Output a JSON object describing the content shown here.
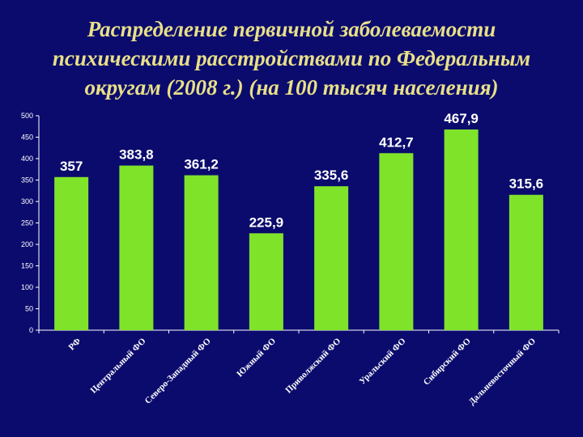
{
  "header": {
    "title_lines": [
      "Распределение первичной заболеваемости",
      "психическими расстройствами по Федеральным",
      "округам (2008 г.) (на 100 тысяч населения)"
    ]
  },
  "chart_data": {
    "type": "bar",
    "title": "Распределение первичной заболеваемости психическими расстройствами по Федеральным округам (2008 г.) (на 100 тысяч населения)",
    "categories": [
      "РФ",
      "Центральный ФО",
      "Северо-Западный ФО",
      "Южный ФО",
      "Приволжский ФО",
      "Уральский ФО",
      "Сибирский ФО",
      "Дальневосточный ФО"
    ],
    "values": [
      357,
      383.8,
      361.2,
      225.9,
      335.6,
      412.7,
      467.9,
      315.6
    ],
    "value_labels": [
      "357",
      "383,8",
      "361,2",
      "225,9",
      "335,6",
      "412,7",
      "467,9",
      "315,6"
    ],
    "yticks": [
      0,
      50,
      100,
      150,
      200,
      250,
      300,
      350,
      400,
      450,
      500
    ],
    "ylim": [
      0,
      500
    ],
    "grid": false,
    "legend": "none",
    "colors": {
      "bar": "#7fe32a",
      "background": "#0b0b6e",
      "title": "#e8e088",
      "text": "#ffffff"
    }
  }
}
